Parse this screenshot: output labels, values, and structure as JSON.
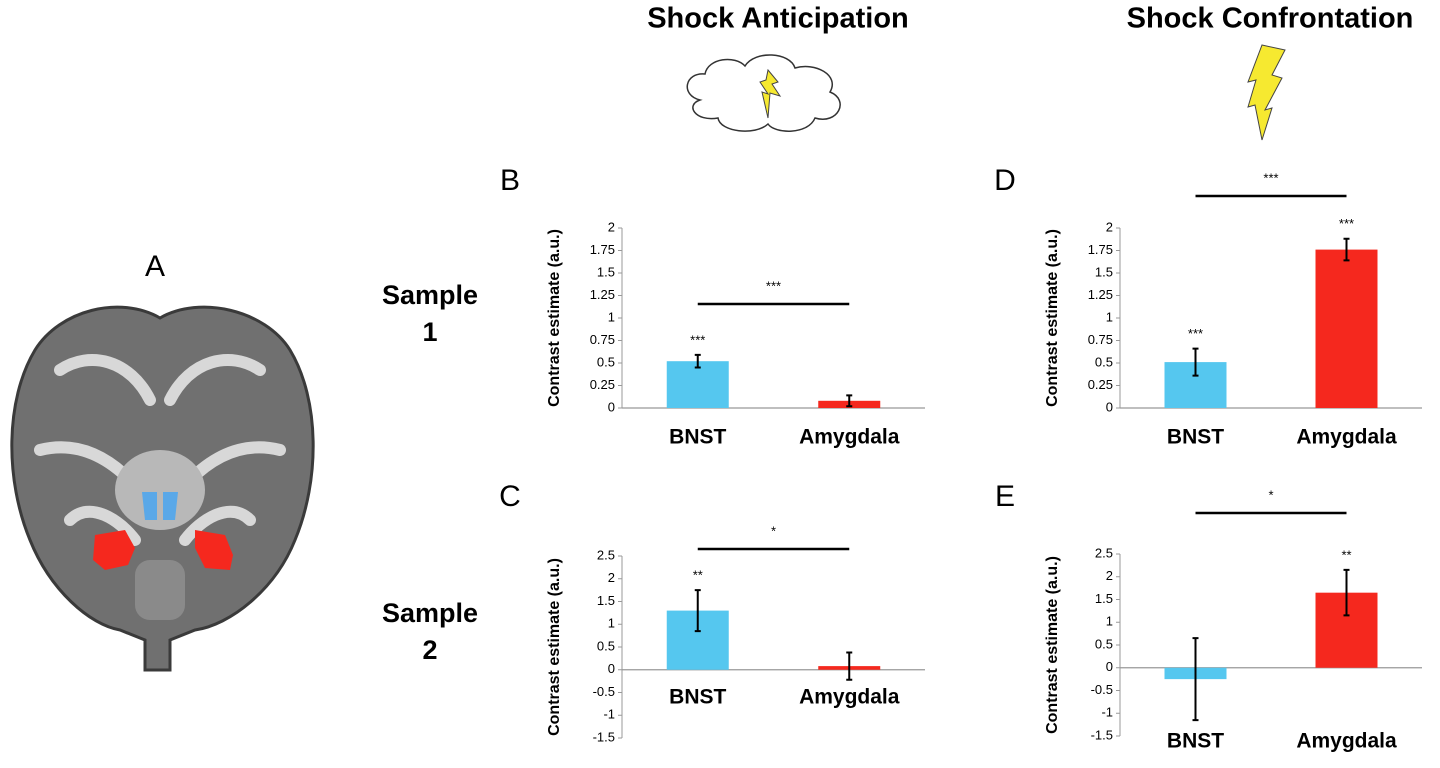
{
  "headings": [
    "Shock Anticipation",
    "Shock Confrontation"
  ],
  "panel_a": "A",
  "sample_labels": [
    [
      "Sample",
      "1"
    ],
    [
      "Sample",
      "2"
    ]
  ],
  "chart_data": [
    {
      "type": "bar",
      "panel": "B",
      "ylabel": "Contrast  estimate (a.u.)",
      "categories": [
        "BNST",
        "Amygdala"
      ],
      "values": [
        0.52,
        0.08
      ],
      "errors": [
        0.07,
        0.06
      ],
      "colors": [
        "#55c7ef",
        "#f5281e"
      ],
      "bar_labels": [
        "***",
        null
      ],
      "comparison_label": "***",
      "ylim": [
        0,
        2
      ],
      "yticks": [
        0,
        0.25,
        0.5,
        0.75,
        1,
        1.25,
        1.5,
        1.75,
        2
      ]
    },
    {
      "type": "bar",
      "panel": "C",
      "ylabel": "Contrast  estimate (a.u.)",
      "categories": [
        "BNST",
        "Amygdala"
      ],
      "values": [
        1.3,
        0.08
      ],
      "errors": [
        0.45,
        0.3
      ],
      "colors": [
        "#55c7ef",
        "#f5281e"
      ],
      "bar_labels": [
        "**",
        null
      ],
      "comparison_label": "*",
      "ylim": [
        -1.5,
        2.5
      ],
      "yticks": [
        -1.5,
        -1,
        -0.5,
        0,
        0.5,
        1,
        1.5,
        2,
        2.5
      ]
    },
    {
      "type": "bar",
      "panel": "D",
      "ylabel": "Contrast  estimate (a.u.)",
      "categories": [
        "BNST",
        "Amygdala"
      ],
      "values": [
        0.51,
        1.76
      ],
      "errors": [
        0.15,
        0.12
      ],
      "colors": [
        "#55c7ef",
        "#f5281e"
      ],
      "bar_labels": [
        "***",
        "***"
      ],
      "comparison_label": "***",
      "ylim": [
        0,
        2
      ],
      "yticks": [
        0,
        0.25,
        0.5,
        0.75,
        1,
        1.25,
        1.5,
        1.75,
        2
      ]
    },
    {
      "type": "bar",
      "panel": "E",
      "ylabel": "Contrast  estimate (a.u.)",
      "categories": [
        "BNST",
        "Amygdala"
      ],
      "values": [
        -0.25,
        1.65
      ],
      "errors": [
        0.9,
        0.5
      ],
      "colors": [
        "#55c7ef",
        "#f5281e"
      ],
      "bar_labels": [
        null,
        "**"
      ],
      "comparison_label": "*",
      "ylim": [
        -1.5,
        2.5
      ],
      "yticks": [
        -1.5,
        -1,
        -0.5,
        0,
        0.5,
        1,
        1.5,
        2,
        2.5
      ]
    }
  ]
}
